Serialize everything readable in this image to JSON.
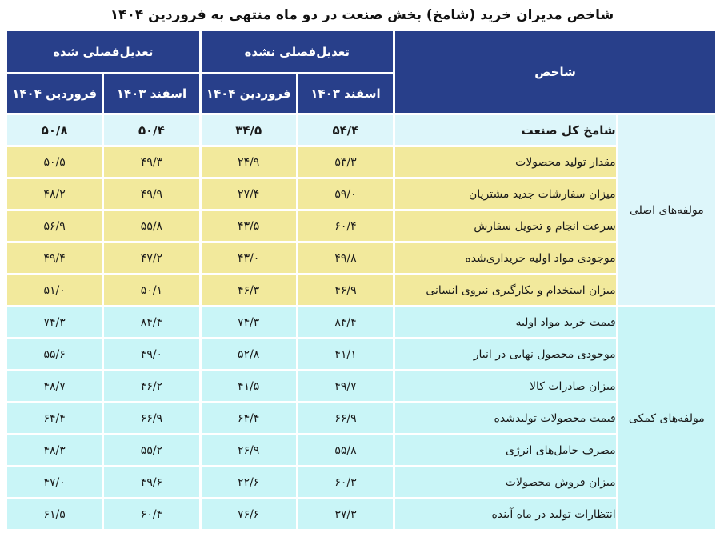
{
  "title": "شاخص مدیران خرید (شامخ) بخش صنعت در دو ماه منتهی به فروردین ۱۴۰۴",
  "header": {
    "indicator": "شاخص",
    "not_adjusted": "تعدیل‌فصلی نشده",
    "adjusted": "تعدیل‌فصلی شده",
    "esfand": "اسفند ۱۴۰۳",
    "farvardin": "فروردین ۱۴۰۴"
  },
  "groups": {
    "main": "مولفه‌های اصلی",
    "aux": "مولفه‌های کمکی"
  },
  "rows": [
    {
      "name": "شامخ کل صنعت",
      "na_esfand": "۵۴/۴",
      "na_farvardin": "۳۴/۵",
      "sa_esfand": "۵۰/۴",
      "sa_farvardin": "۵۰/۸"
    },
    {
      "name": "مقدار تولید محصولات",
      "na_esfand": "۵۳/۳",
      "na_farvardin": "۲۴/۹",
      "sa_esfand": "۴۹/۳",
      "sa_farvardin": "۵۰/۵"
    },
    {
      "name": "میزان سفارشات جدید مشتریان",
      "na_esfand": "۵۹/۰",
      "na_farvardin": "۲۷/۴",
      "sa_esfand": "۴۹/۹",
      "sa_farvardin": "۴۸/۲"
    },
    {
      "name": "سرعت انجام و تحویل سفارش",
      "na_esfand": "۶۰/۴",
      "na_farvardin": "۴۳/۵",
      "sa_esfand": "۵۵/۸",
      "sa_farvardin": "۵۶/۹"
    },
    {
      "name": "موجودی مواد اولیه خریداری‌شده",
      "na_esfand": "۴۹/۸",
      "na_farvardin": "۴۳/۰",
      "sa_esfand": "۴۷/۲",
      "sa_farvardin": "۴۹/۴"
    },
    {
      "name": "میزان استخدام و بکارگیری نیروی انسانی",
      "na_esfand": "۴۶/۹",
      "na_farvardin": "۴۶/۳",
      "sa_esfand": "۵۰/۱",
      "sa_farvardin": "۵۱/۰"
    },
    {
      "name": "قیمت خرید مواد اولیه",
      "na_esfand": "۸۴/۴",
      "na_farvardin": "۷۴/۳",
      "sa_esfand": "۸۴/۴",
      "sa_farvardin": "۷۴/۳"
    },
    {
      "name": "موجودی محصول نهایی در انبار",
      "na_esfand": "۴۱/۱",
      "na_farvardin": "۵۲/۸",
      "sa_esfand": "۴۹/۰",
      "sa_farvardin": "۵۵/۶"
    },
    {
      "name": "میزان صادرات کالا",
      "na_esfand": "۴۹/۷",
      "na_farvardin": "۴۱/۵",
      "sa_esfand": "۴۶/۲",
      "sa_farvardin": "۴۸/۷"
    },
    {
      "name": "قیمت محصولات تولیدشده",
      "na_esfand": "۶۶/۹",
      "na_farvardin": "۶۴/۴",
      "sa_esfand": "۶۶/۹",
      "sa_farvardin": "۶۴/۴"
    },
    {
      "name": "مصرف حامل‌های انرژی",
      "na_esfand": "۵۵/۸",
      "na_farvardin": "۲۶/۹",
      "sa_esfand": "۵۵/۲",
      "sa_farvardin": "۴۸/۳"
    },
    {
      "name": "میزان فروش محصولات",
      "na_esfand": "۶۰/۳",
      "na_farvardin": "۲۲/۶",
      "sa_esfand": "۴۹/۶",
      "sa_farvardin": "۴۷/۰"
    },
    {
      "name": "انتظارات تولید در ماه آینده",
      "na_esfand": "۳۷/۳",
      "na_farvardin": "۷۶/۶",
      "sa_esfand": "۶۰/۴",
      "sa_farvardin": "۶۱/۵"
    }
  ],
  "colors": {
    "header": "#283f8a",
    "main_rows": "#f2e99c",
    "aux_rows": "#c9f5f7",
    "total_row": "#ddf6fa"
  }
}
